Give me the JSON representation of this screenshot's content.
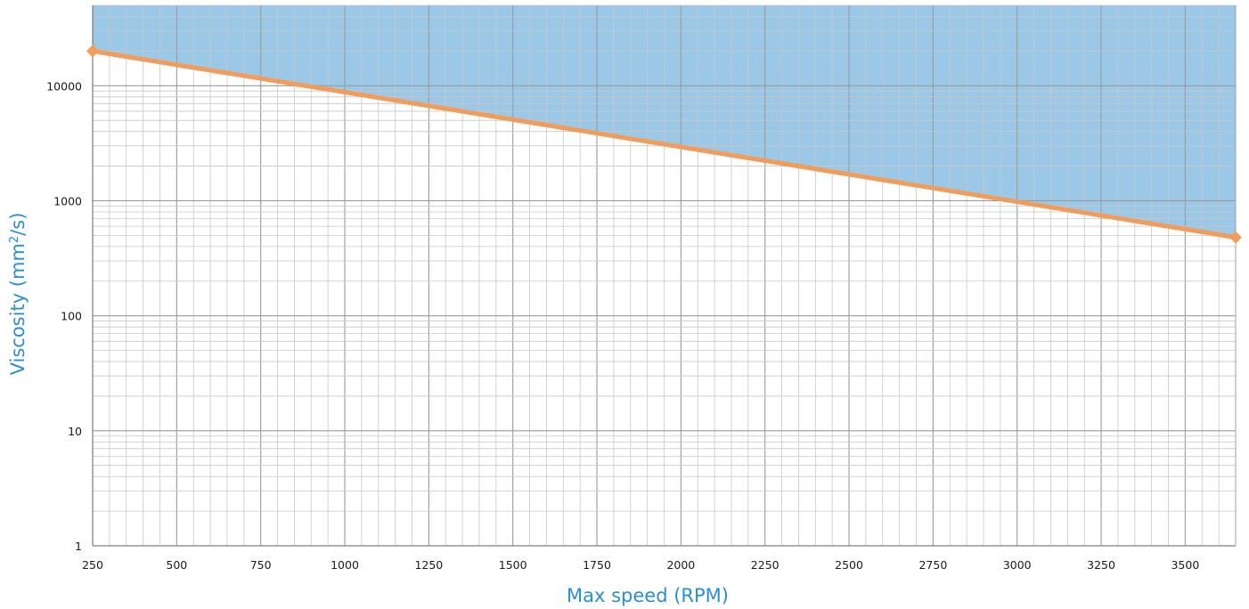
{
  "chart_data": {
    "type": "area",
    "xlabel": "Max speed (RPM)",
    "ylabel_main": "Viscosity (mm",
    "ylabel_sup": "2",
    "ylabel_end": "/s)",
    "x_ticks": [
      "250",
      "500",
      "750",
      "1000",
      "1250",
      "1500",
      "1750",
      "2000",
      "2250",
      "2500",
      "2750",
      "3000",
      "3250",
      "3500"
    ],
    "y_ticks": [
      "1",
      "10",
      "100",
      "1000",
      "10000"
    ],
    "xlim": [
      250,
      3650
    ],
    "ylim": [
      1,
      50000
    ],
    "y_scale": "log",
    "grid": true,
    "series": [
      {
        "x": [
          250,
          3650
        ],
        "y": [
          20000,
          480
        ],
        "fill_above": true
      }
    ],
    "colors": {
      "line": "#f39c5a",
      "fill": "#7fb8e0",
      "axis_title": "#2b8fd0",
      "grid_major": "#9a9a9a",
      "grid_minor": "#c8c8c8"
    }
  }
}
